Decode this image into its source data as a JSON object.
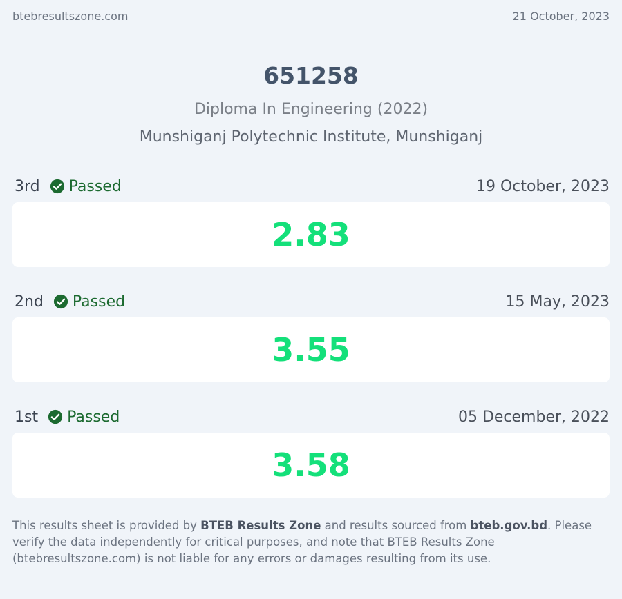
{
  "topbar": {
    "site": "btebresultszone.com",
    "date": "21 October, 2023"
  },
  "header": {
    "roll": "651258",
    "program": "Diploma In Engineering (2022)",
    "institute": "Munshiganj Polytechnic Institute, Munshiganj"
  },
  "results": [
    {
      "semester": "3rd",
      "status": "Passed",
      "date": "19 October, 2023",
      "gpa": "2.83"
    },
    {
      "semester": "2nd",
      "status": "Passed",
      "date": "15 May, 2023",
      "gpa": "3.55"
    },
    {
      "semester": "1st",
      "status": "Passed",
      "date": "05 December, 2022",
      "gpa": "3.58"
    }
  ],
  "disclaimer": {
    "part1": "This results sheet is provided by ",
    "brand": "BTEB Results Zone",
    "part2": " and results sourced from ",
    "source": "bteb.gov.bd",
    "part3": ". Please verify the data independently for critical purposes, and note that BTEB Results Zone (btebresultszone.com) is not liable for any errors or damages resulting from its use."
  },
  "colors": {
    "gpa": "#14e07a",
    "passed": "#1c6a30",
    "background": "#f0f4f9"
  }
}
